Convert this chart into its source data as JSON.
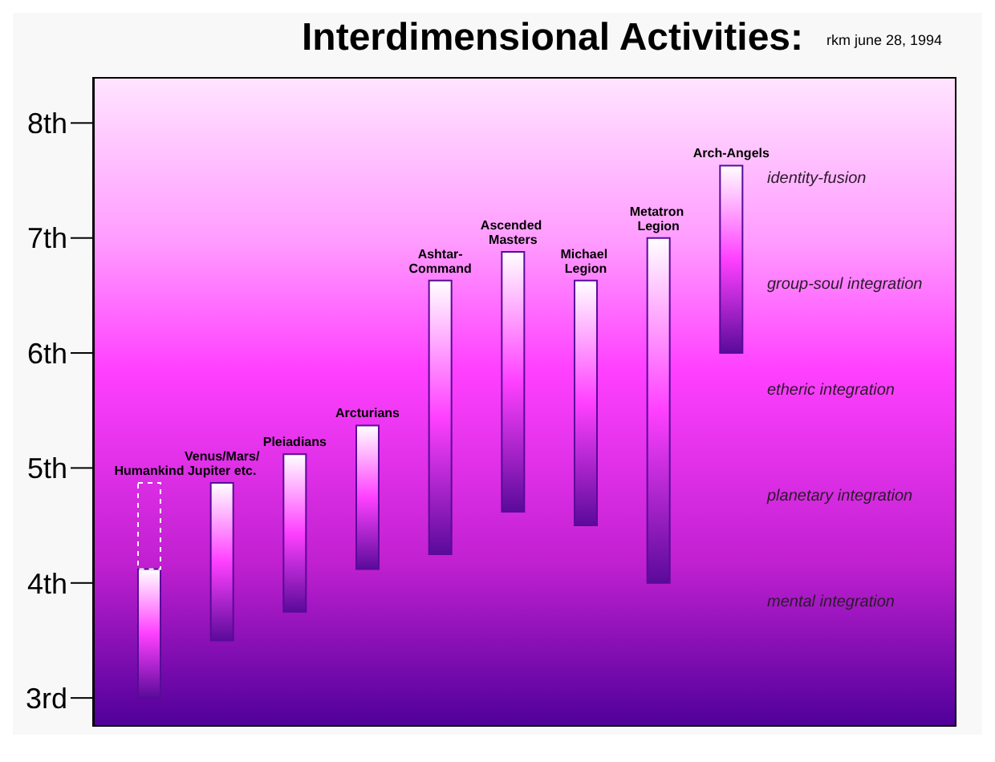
{
  "chart_data": {
    "type": "bar",
    "title": "Interdimensional Activities:",
    "categories": [
      "Humankind",
      "Venus/Mars/Jupiter etc.",
      "Pleiadians",
      "Arcturians",
      "Ashtar-Command",
      "Ascended Masters",
      "Michael Legion",
      "Metatron Legion",
      "Arch-Angels"
    ],
    "series": [
      {
        "color": "#5a0a9a",
        "base": [
          3.0,
          3.5,
          3.75,
          4.12,
          4.25,
          4.62,
          4.5,
          4.0,
          6.0
        ],
        "values": [
          1.12,
          1.37,
          1.37,
          1.25,
          2.38,
          2.26,
          2.13,
          3.0,
          1.63
        ]
      },
      {
        "color": "#ffffff",
        "line_style": "dotted",
        "base": [
          4.12,
          null,
          null,
          null,
          null,
          null,
          null,
          null,
          null
        ],
        "values": [
          0.75,
          null,
          null,
          null,
          null,
          null,
          null,
          null,
          null
        ]
      }
    ],
    "ylim": [
      2.75,
      8.4
    ],
    "yticks": [
      {
        "value": 3,
        "label": "3rd"
      },
      {
        "value": 4,
        "label": "4th"
      },
      {
        "value": 5,
        "label": "5th"
      },
      {
        "value": 6,
        "label": "6th"
      },
      {
        "value": 7,
        "label": "7th"
      },
      {
        "value": 8,
        "label": "8th"
      }
    ],
    "tick_labels": "y",
    "annotations": [
      "rkm june 28, 1994",
      "identity-fusion",
      "group-soul integration",
      "etheric integration",
      "planetary integration",
      "mental integration"
    ]
  }
}
